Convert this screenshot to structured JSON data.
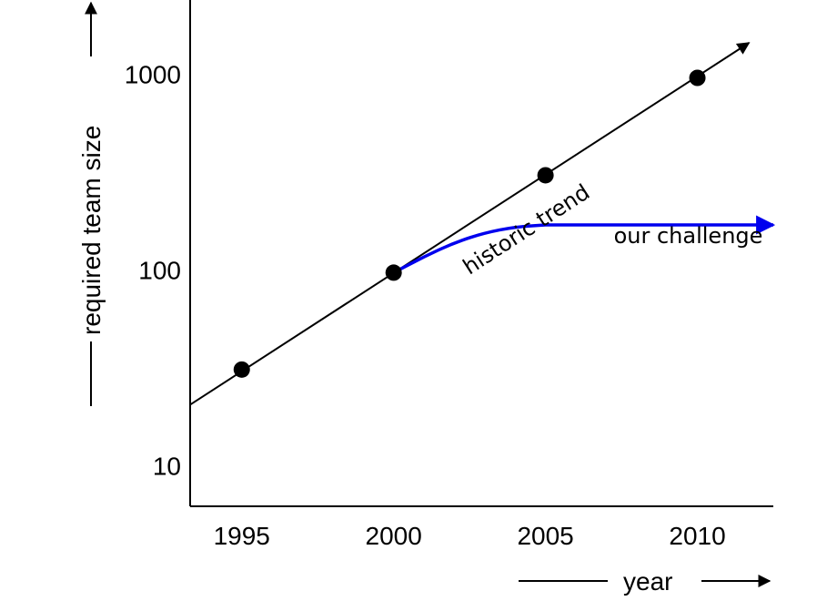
{
  "chart_data": {
    "type": "line",
    "xlabel": "year",
    "ylabel": "required team size",
    "y_scale": "log",
    "xlim": [
      1993.3,
      2012.5
    ],
    "ylim": [
      6.2,
      2400
    ],
    "x_ticks": [
      1995,
      2000,
      2005,
      2010
    ],
    "x_tick_labels": [
      "1995",
      "2000",
      "2005",
      "2010"
    ],
    "y_ticks": [
      10,
      100,
      1000
    ],
    "y_tick_labels": [
      "10",
      "100",
      "1000"
    ],
    "series": [
      {
        "name": "historic trend",
        "color": "#000000",
        "points": [
          {
            "x": 1995,
            "y": 31
          },
          {
            "x": 2000,
            "y": 97
          },
          {
            "x": 2005,
            "y": 305
          },
          {
            "x": 2010,
            "y": 960
          }
        ],
        "trend_line": [
          {
            "x": 1993.3,
            "y": 20.5
          },
          {
            "x": 2011.7,
            "y": 1450
          }
        ]
      },
      {
        "name": "our challenge",
        "color": "#0000ee",
        "curve": [
          {
            "x": 2000,
            "y": 97
          },
          {
            "x": 2001,
            "y": 117
          },
          {
            "x": 2002,
            "y": 138
          },
          {
            "x": 2003,
            "y": 155
          },
          {
            "x": 2004,
            "y": 166
          },
          {
            "x": 2005,
            "y": 170
          },
          {
            "x": 2012.5,
            "y": 170
          }
        ]
      }
    ],
    "annotations": [
      {
        "text": "historic trend",
        "x": 2004.5,
        "y": 150,
        "rotation": -33
      },
      {
        "text": "our challenge",
        "x": 2009.7,
        "y": 123
      }
    ],
    "grid": false,
    "legend": "none"
  }
}
